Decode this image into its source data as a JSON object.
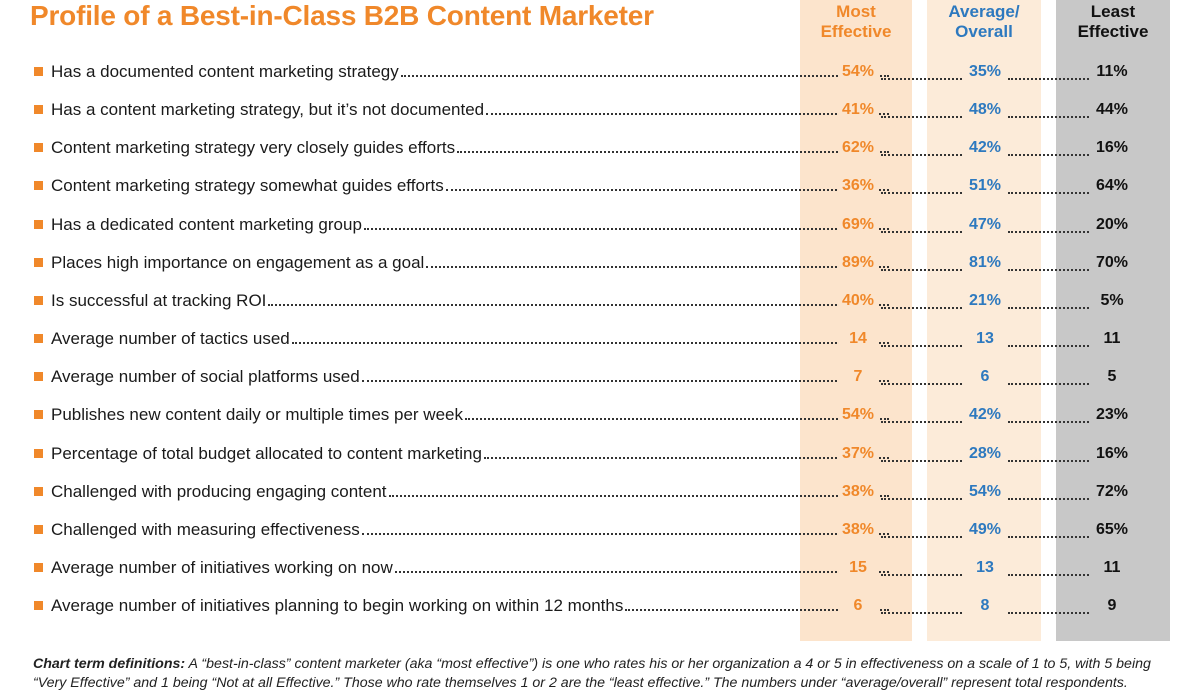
{
  "title": "Profile of a Best-in-Class B2B Content Marketer",
  "columns": {
    "most": [
      "Most",
      "Effective"
    ],
    "avg": [
      "Average/",
      "Overall"
    ],
    "least": [
      "Least",
      "Effective"
    ]
  },
  "colors": {
    "orange": "#f0882a",
    "blue": "#2d79bf",
    "most_bg": "#fce4cc",
    "avg_bg": "#fcebd9",
    "least_bg": "#c8c8c8"
  },
  "chart_data": {
    "type": "table",
    "title": "Profile of a Best-in-Class B2B Content Marketer",
    "series": [
      {
        "name": "Most Effective"
      },
      {
        "name": "Average/Overall"
      },
      {
        "name": "Least Effective"
      }
    ],
    "rows": [
      {
        "label": "Has a documented content marketing strategy",
        "most": "54%",
        "avg": "35%",
        "least": "11%"
      },
      {
        "label": "Has a content marketing strategy, but it’s not documented",
        "most": "41%",
        "avg": "48%",
        "least": "44%"
      },
      {
        "label": "Content marketing strategy very closely guides efforts",
        "most": "62%",
        "avg": "42%",
        "least": "16%"
      },
      {
        "label": "Content marketing strategy somewhat guides efforts",
        "most": "36%",
        "avg": "51%",
        "least": "64%"
      },
      {
        "label": "Has a dedicated content marketing group",
        "most": "69%",
        "avg": "47%",
        "least": "20%"
      },
      {
        "label": "Places high importance on engagement as a goal",
        "most": "89%",
        "avg": "81%",
        "least": "70%"
      },
      {
        "label": "Is successful at tracking ROI",
        "most": "40%",
        "avg": "21%",
        "least": "5%"
      },
      {
        "label": "Average number of tactics used",
        "most": "14",
        "avg": "13",
        "least": "11"
      },
      {
        "label": "Average number of social platforms used",
        "most": "7",
        "avg": "6",
        "least": "5"
      },
      {
        "label": "Publishes new content daily or multiple times per week",
        "most": "54%",
        "avg": "42%",
        "least": "23%"
      },
      {
        "label": "Percentage of total budget allocated to content marketing",
        "most": "37%",
        "avg": "28%",
        "least": "16%"
      },
      {
        "label": "Challenged with producing engaging content",
        "most": "38%",
        "avg": "54%",
        "least": "72%"
      },
      {
        "label": "Challenged with measuring effectiveness",
        "most": "38%",
        "avg": "49%",
        "least": "65%"
      },
      {
        "label": "Average number of initiatives working on now",
        "most": "15",
        "avg": "13",
        "least": "11"
      },
      {
        "label": "Average number of initiatives planning to begin working on within 12 months",
        "most": "6",
        "avg": "8",
        "least": "9"
      }
    ]
  },
  "footnote": {
    "heading": "Chart term definitions:",
    "text": " A “best-in-class” content marketer (aka “most effective”) is one who rates his or her organization a 4 or 5 in effectiveness on a scale of 1 to 5, with 5 being “Very Effective” and 1 being “Not at all Effective.” Those who rate themselves 1 or 2 are the “least effective.” The numbers under “average/overall” represent total respondents."
  }
}
